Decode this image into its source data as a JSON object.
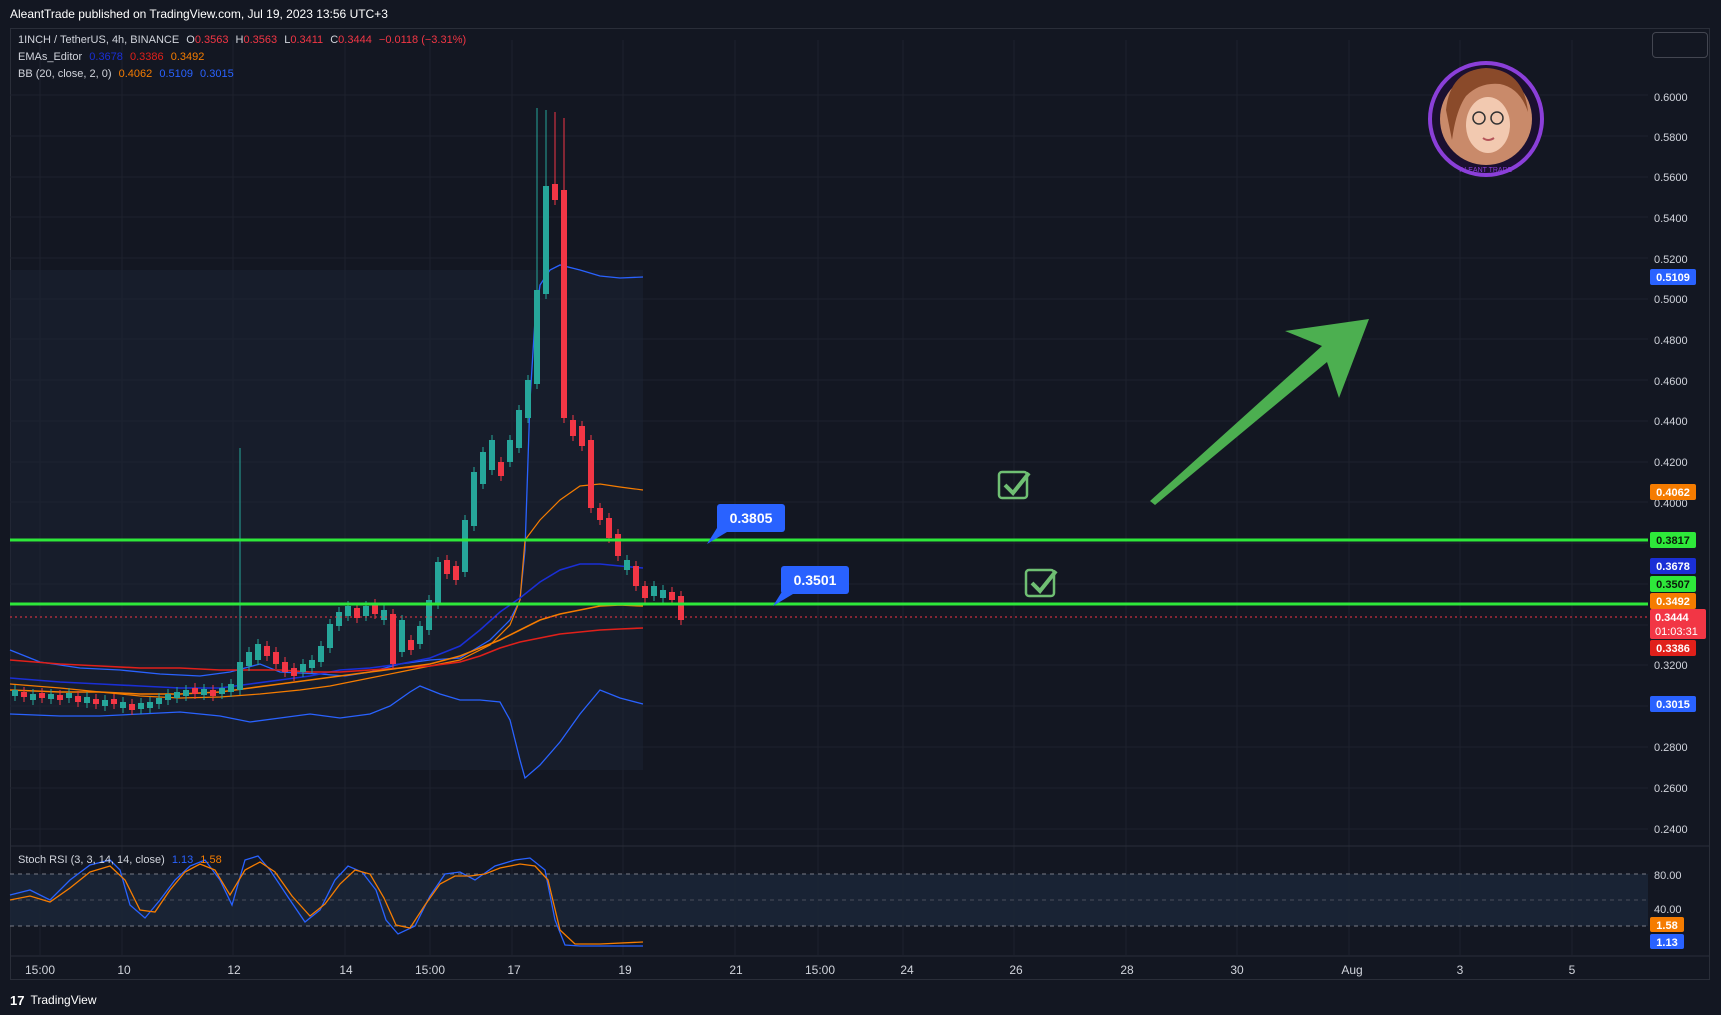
{
  "header": {
    "published": "AleantTrade published on TradingView.com, Jul 19, 2023 13:56 UTC+3"
  },
  "legend": {
    "symbol": "1INCH / TetherUS, 4h, BINANCE",
    "o_label": "O",
    "o": "0.3563",
    "h_label": "H",
    "h": "0.3563",
    "l_label": "L",
    "l": "0.3411",
    "c_label": "C",
    "c": "0.3444",
    "change": "−0.0118 (−3.31%)",
    "ema_name": "EMAs_Editor",
    "ema_v1": "0.3678",
    "ema_v2": "0.3386",
    "ema_v3": "0.3492",
    "bb_name": "BB (20, close, 2, 0)",
    "bb_v1": "0.4062",
    "bb_v2": "0.5109",
    "bb_v3": "0.3015",
    "stoch_name": "Stoch RSI (3, 3, 14, 14, close)",
    "stoch_k": "1.13",
    "stoch_d": "1.58"
  },
  "price_axis": {
    "ticks": [
      "0.6000",
      "0.5800",
      "0.5600",
      "0.5400",
      "0.5200",
      "0.5000",
      "0.4800",
      "0.4600",
      "0.4400",
      "0.4200",
      "0.4000",
      "0.3200",
      "0.2800",
      "0.2600",
      "0.2400"
    ],
    "badges": {
      "bb_upper": "0.5109",
      "bb_basis": "0.4062",
      "level_top": "0.3817",
      "ema_blue": "0.3678",
      "level_low": "0.3507",
      "ema_orange": "0.3492",
      "last_price": "0.3444",
      "countdown": "01:03:31",
      "ema_red": "0.3386",
      "bb_lower": "0.3015"
    }
  },
  "annotations": {
    "callout_top": "0.3805",
    "callout_low": "0.3501"
  },
  "stoch_axis": {
    "ticks": [
      "80.00",
      "40.00"
    ],
    "badge_d": "1.58",
    "badge_k": "1.13"
  },
  "time_axis": {
    "labels": [
      "15:00",
      "10",
      "12",
      "14",
      "15:00",
      "17",
      "19",
      "21",
      "15:00",
      "24",
      "26",
      "28",
      "30",
      "Aug",
      "3",
      "5"
    ]
  },
  "footer": {
    "brand": "TradingView",
    "logo": "17"
  },
  "colors": {
    "up": "#26a69a",
    "down": "#f23645",
    "level": "#2ee83a",
    "bb": "#2962ff",
    "ema_blue": "#1a2fd6",
    "ema_orange": "#f57c00",
    "ema_red": "#e0201a",
    "arrow": "#4caf50",
    "callout": "#2962ff"
  },
  "avatar": {
    "ring_text": "ALEANT TRADE"
  }
}
